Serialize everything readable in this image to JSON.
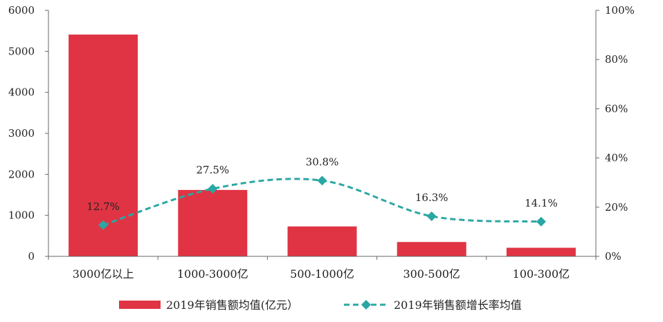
{
  "colors": {
    "bar": "#e03444",
    "line": "#2aa7a3",
    "axis": "#666666",
    "text": "#222222"
  },
  "chart_data": {
    "type": "bar",
    "categories": [
      "3000亿以上",
      "1000-3000亿",
      "500-1000亿",
      "300-500亿",
      "100-300亿"
    ],
    "series": [
      {
        "name": "2019年销售额均值(亿元）",
        "type": "bar",
        "axis": "left",
        "values": [
          5410,
          1620,
          730,
          350,
          210
        ]
      },
      {
        "name": "2019年销售额增长率均值",
        "type": "line",
        "axis": "right",
        "style": "dashed-smooth",
        "marker": "diamond",
        "values": [
          12.7,
          27.5,
          30.8,
          16.3,
          14.1
        ],
        "labels": [
          "12.7%",
          "27.5%",
          "30.8%",
          "16.3%",
          "14.1%"
        ]
      }
    ],
    "y_left": {
      "min": 0,
      "max": 6000,
      "ticks": [
        "0",
        "1000",
        "2000",
        "3000",
        "4000",
        "5000",
        "6000"
      ]
    },
    "y_right": {
      "min": 0,
      "max": 100,
      "ticks": [
        "0%",
        "20%",
        "40%",
        "60%",
        "80%",
        "100%"
      ]
    },
    "legend": {
      "position": "bottom"
    },
    "grid": false
  }
}
